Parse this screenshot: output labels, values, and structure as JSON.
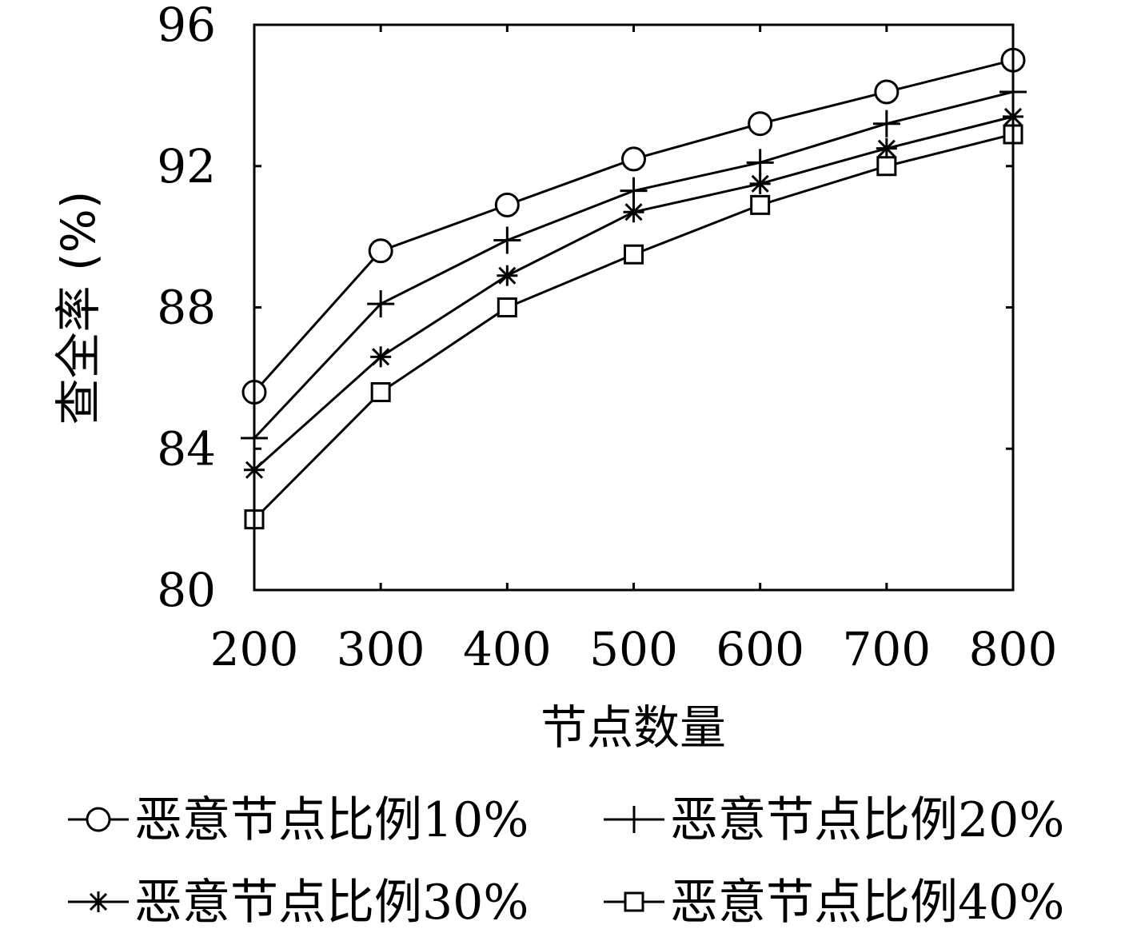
{
  "chart_data": {
    "type": "line",
    "x": [
      200,
      300,
      400,
      500,
      600,
      700,
      800
    ],
    "xticks": [
      "200",
      "300",
      "400",
      "500",
      "600",
      "700",
      "800"
    ],
    "yticks": [
      "80",
      "84",
      "88",
      "92",
      "96"
    ],
    "xlim": [
      200,
      800
    ],
    "ylim": [
      80,
      96
    ],
    "xlabel": "节点数量",
    "ylabel": "查全率 (%)",
    "grid": false,
    "legend_position": "bottom",
    "series": [
      {
        "name": "恶意节点比例10%",
        "marker": "circle",
        "values": [
          85.6,
          89.6,
          90.9,
          92.2,
          93.2,
          94.1,
          95.0
        ]
      },
      {
        "name": "恶意节点比例20%",
        "marker": "plus",
        "values": [
          84.3,
          88.1,
          89.9,
          91.3,
          92.1,
          93.2,
          94.1
        ]
      },
      {
        "name": "恶意节点比例30%",
        "marker": "asterisk",
        "values": [
          83.4,
          86.6,
          88.9,
          90.7,
          91.5,
          92.5,
          93.4
        ]
      },
      {
        "name": "恶意节点比例40%",
        "marker": "square",
        "values": [
          82.0,
          85.6,
          88.0,
          89.5,
          90.9,
          92.0,
          92.9
        ]
      }
    ]
  }
}
